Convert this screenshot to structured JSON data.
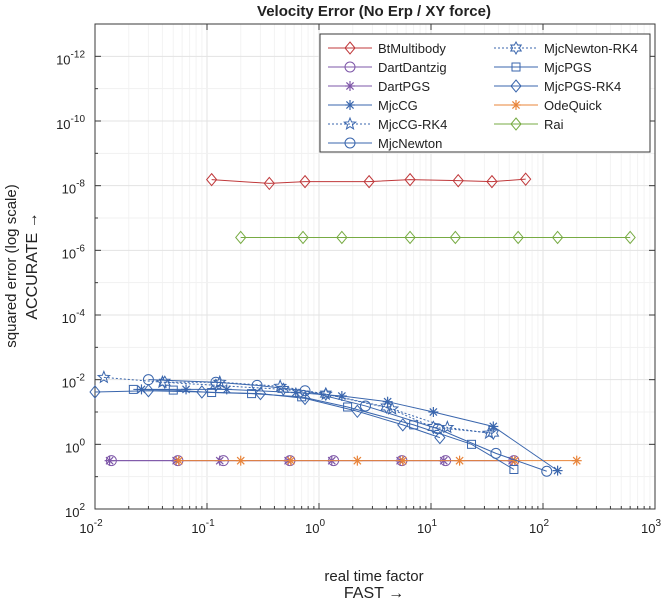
{
  "chart_data": {
    "type": "line",
    "title": "Velocity Error (No Erp / XY force)",
    "xlabel": "real time factor",
    "xlabel2": "FAST →",
    "ylabel": "squared error (log scale)",
    "ylabel2": "ACCURATE →",
    "x_scale": "log",
    "y_scale": "log",
    "y_axis_reversed": true,
    "xlim": [
      0.01,
      1000
    ],
    "ylim": [
      1e-13,
      100
    ],
    "grid": true,
    "legend_position": "top-right",
    "x_ticks": [
      {
        "value": 0.01,
        "base": "10",
        "exp": "-2"
      },
      {
        "value": 0.1,
        "base": "10",
        "exp": "-1"
      },
      {
        "value": 1,
        "base": "10",
        "exp": "0"
      },
      {
        "value": 10,
        "base": "10",
        "exp": "1"
      },
      {
        "value": 100,
        "base": "10",
        "exp": "2"
      },
      {
        "value": 1000,
        "base": "10",
        "exp": "3"
      }
    ],
    "y_ticks": [
      {
        "value": 1e-12,
        "base": "10",
        "exp": "-12"
      },
      {
        "value": 1e-10,
        "base": "10",
        "exp": "-10"
      },
      {
        "value": 1e-08,
        "base": "10",
        "exp": "-8"
      },
      {
        "value": 1e-06,
        "base": "10",
        "exp": "-6"
      },
      {
        "value": 0.0001,
        "base": "10",
        "exp": "-4"
      },
      {
        "value": 0.01,
        "base": "10",
        "exp": "-2"
      },
      {
        "value": 1,
        "base": "10",
        "exp": "0"
      },
      {
        "value": 100,
        "base": "10",
        "exp": "2"
      }
    ],
    "series": [
      {
        "name": "BtMultibody",
        "color": "#c0393b",
        "marker": "diamond",
        "dash": "solid",
        "x": [
          0.11,
          0.36,
          0.75,
          2.8,
          6.5,
          17.5,
          35,
          70
        ],
        "y": [
          6.5e-09,
          8.5e-09,
          7.5e-09,
          7.5e-09,
          6.5e-09,
          7e-09,
          7.5e-09,
          6.3e-09
        ]
      },
      {
        "name": "Rai",
        "color": "#77ab43",
        "marker": "diamond",
        "dash": "solid",
        "x": [
          0.2,
          0.72,
          1.6,
          6.5,
          16.5,
          60,
          135,
          600
        ],
        "y": [
          4e-07,
          4e-07,
          4e-07,
          4e-07,
          4e-07,
          4e-07,
          4e-07,
          4e-07
        ]
      },
      {
        "name": "DartDantzig",
        "color": "#7e57a8",
        "marker": "circle",
        "dash": "solid",
        "x": [
          0.014,
          0.055,
          0.14,
          0.55,
          1.35,
          5.5,
          13.5,
          55
        ],
        "y": [
          3.2,
          3.2,
          3.2,
          3.2,
          3.2,
          3.2,
          3.2,
          3.2
        ]
      },
      {
        "name": "DartPGS",
        "color": "#7e57a8",
        "marker": "asterisk",
        "dash": "solid",
        "x": [
          0.0135,
          0.053,
          0.13,
          0.53,
          1.3,
          5.3,
          13,
          53
        ],
        "y": [
          3.2,
          3.2,
          3.2,
          3.2,
          3.2,
          3.2,
          3.2,
          3.2
        ]
      },
      {
        "name": "OdeQuick",
        "color": "#e8843a",
        "marker": "asterisk",
        "dash": "solid",
        "x": [
          0.056,
          0.2,
          0.56,
          2.2,
          5.6,
          18,
          56,
          200
        ],
        "y": [
          3.2,
          3.2,
          3.2,
          3.2,
          3.2,
          3.2,
          3.2,
          3.2
        ]
      },
      {
        "name": "MjcCG",
        "color": "#3a66ad",
        "marker": "asterisk",
        "dash": "solid",
        "x": [
          0.026,
          0.065,
          0.15,
          0.62,
          1.6,
          4.1,
          10.5,
          36,
          135
        ],
        "y": [
          0.02,
          0.02,
          0.02,
          0.025,
          0.032,
          0.048,
          0.1,
          0.28,
          6.5
        ]
      },
      {
        "name": "MjcCG-RK4",
        "color": "#3a66ad",
        "marker": "star",
        "dash": "dotted",
        "x": [
          0.012,
          0.04,
          0.13,
          0.45,
          1.15,
          4.5,
          14,
          33
        ],
        "y": [
          0.0085,
          0.012,
          0.012,
          0.016,
          0.028,
          0.08,
          0.3,
          0.45
        ]
      },
      {
        "name": "MjcNewton",
        "color": "#3a66ad",
        "marker": "circle",
        "dash": "solid",
        "x": [
          0.03,
          0.12,
          0.28,
          0.75,
          2.6,
          11.5,
          38,
          108
        ],
        "y": [
          0.01,
          0.012,
          0.015,
          0.022,
          0.065,
          0.33,
          1.9,
          6.8
        ]
      },
      {
        "name": "MjcNewton-RK4",
        "color": "#3a66ad",
        "marker": "star6",
        "dash": "dotted",
        "x": [
          0.042,
          0.12,
          0.48,
          1.15,
          4,
          10.5,
          36
        ],
        "y": [
          0.012,
          0.015,
          0.02,
          0.028,
          0.07,
          0.3,
          0.45
        ]
      },
      {
        "name": "MjcPGS",
        "color": "#3a66ad",
        "marker": "square",
        "dash": "solid",
        "x": [
          0.022,
          0.05,
          0.11,
          0.25,
          0.7,
          1.8,
          7,
          23,
          55
        ],
        "y": [
          0.02,
          0.021,
          0.025,
          0.027,
          0.034,
          0.07,
          0.25,
          1,
          6
        ]
      },
      {
        "name": "MjcPGS-RK4",
        "color": "#3a66ad",
        "marker": "diamond",
        "dash": "solid",
        "x": [
          0.01,
          0.03,
          0.09,
          0.3,
          0.75,
          2.2,
          5.6,
          12
        ],
        "y": [
          0.024,
          0.022,
          0.024,
          0.027,
          0.038,
          0.095,
          0.25,
          0.62
        ]
      }
    ]
  }
}
